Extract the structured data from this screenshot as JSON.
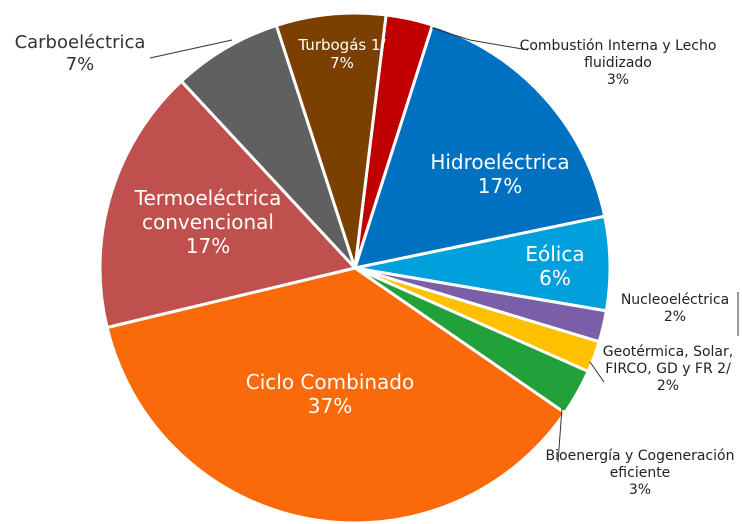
{
  "chart_data": {
    "type": "pie",
    "categories": [
      "Combustión Interna y Lecho fluidizado",
      "Hidroeléctrica",
      "Eólica",
      "Nucleoeléctrica",
      "Geotérmica, Solar, FIRCO, GD y FR 2/",
      "Bioenergía y Cogeneración eficiente",
      "Ciclo Combinado",
      "Termoeléctrica convencional",
      "Carboeléctrica",
      "Turbogás 1/"
    ],
    "values": [
      3,
      17,
      6,
      2,
      2,
      3,
      37,
      17,
      7,
      7
    ],
    "value_labels": [
      "3%",
      "17%",
      "6%",
      "2%",
      "2%",
      "3%",
      "37%",
      "17%",
      "7%",
      "7%"
    ],
    "colors": [
      "#c00000",
      "#0070c0",
      "#00a0dc",
      "#7a5fa8",
      "#ffc000",
      "#22a03a",
      "#fa6a0a",
      "#c0504d",
      "#606060",
      "#7b3f00"
    ]
  }
}
